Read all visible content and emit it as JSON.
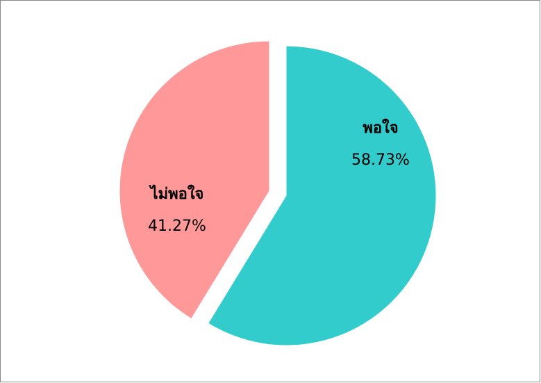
{
  "chart_data": {
    "type": "pie",
    "categories": [
      "พอใจ",
      "ไม่พอใจ"
    ],
    "values": [
      58.73,
      41.27
    ],
    "value_labels": [
      "58.73%",
      "41.27%"
    ],
    "colors": [
      "#33cccc",
      "#ff9999"
    ]
  }
}
